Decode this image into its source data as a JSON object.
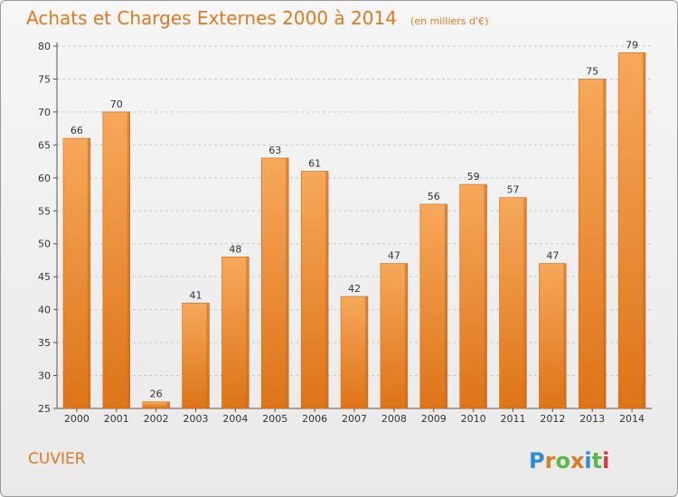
{
  "chart_data": {
    "type": "bar",
    "title": "Achats et Charges Externes 2000 à 2014",
    "subtitle": "(en milliers d'€)",
    "categories": [
      "2000",
      "2001",
      "2002",
      "2003",
      "2004",
      "2005",
      "2006",
      "2007",
      "2008",
      "2009",
      "2010",
      "2011",
      "2012",
      "2013",
      "2014"
    ],
    "values": [
      66,
      70,
      26,
      41,
      48,
      63,
      61,
      42,
      47,
      56,
      59,
      57,
      47,
      75,
      79
    ],
    "ylim": [
      25,
      80
    ],
    "yticks": [
      25,
      30,
      35,
      40,
      45,
      50,
      55,
      60,
      65,
      70,
      75,
      80
    ],
    "grid": true,
    "xlabel": "",
    "ylabel": "",
    "bar_color": "#e07a1e"
  },
  "footer": {
    "commune": "CUVIER",
    "logo_text": "Proxiti",
    "logo_colors": [
      "#2e8bd6",
      "#e07a1e",
      "#58b947",
      "#e07a1e",
      "#2e8bd6",
      "#58b947",
      "#d63b3b"
    ]
  }
}
